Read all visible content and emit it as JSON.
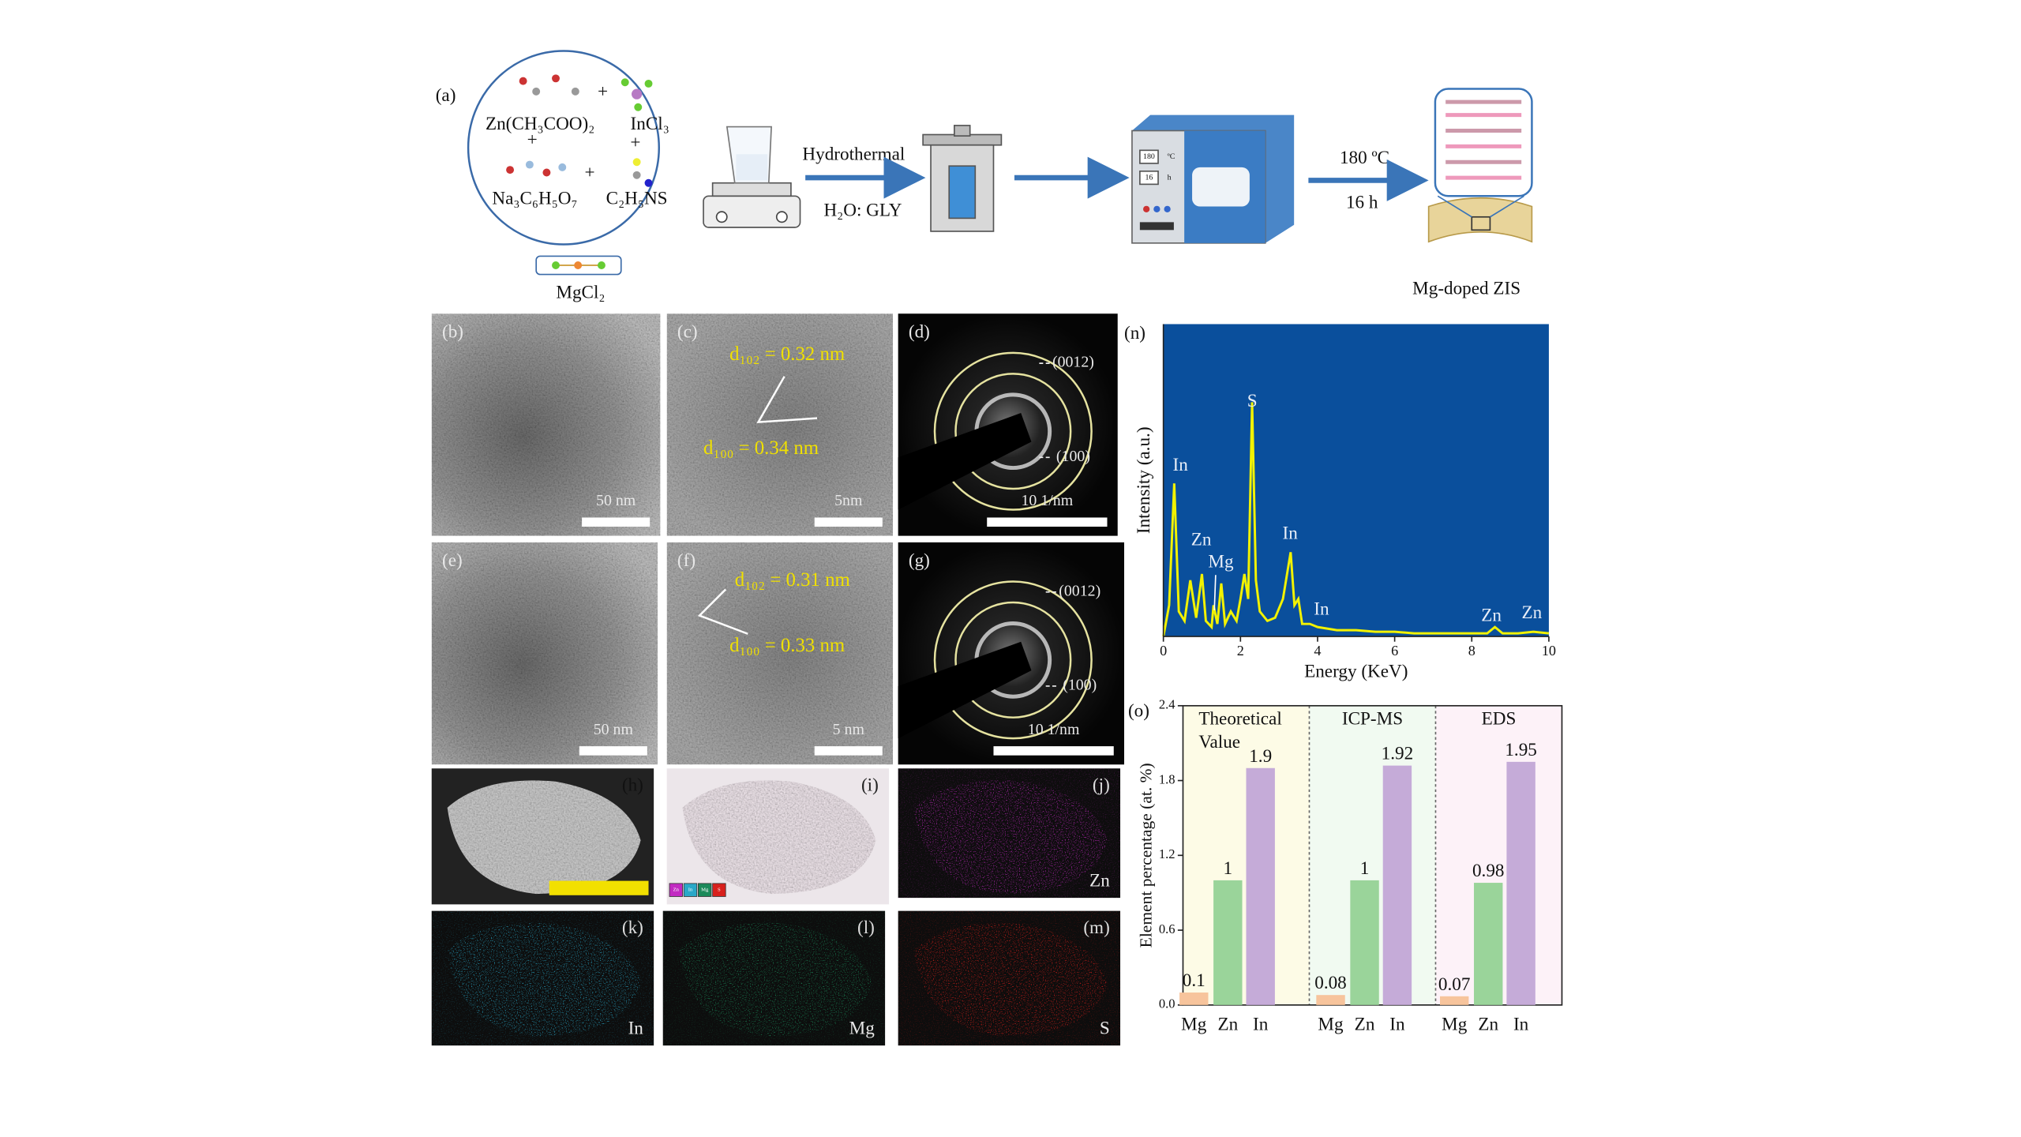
{
  "scheme": {
    "label": "(a)",
    "reactants": [
      "Zn(CH₃COO)₂",
      "InCl₃",
      "Na₃C₆H₅O₇",
      "C₂H₅NS"
    ],
    "plus": "+",
    "dopant": "MgCl₂",
    "step1": [
      "Hydrothermal",
      "H₂O: GLY"
    ],
    "oven_display": [
      "180",
      "ºC",
      "16",
      "h"
    ],
    "step2": [
      "180 ºC",
      "16 h"
    ],
    "product": "Mg-doped ZIS"
  },
  "micrographs": [
    {
      "label": "(b)",
      "scale": "50 nm"
    },
    {
      "label": "(c)",
      "scale": "5nm",
      "annotations": [
        "d₁₀₂ = 0.32 nm",
        "d₁₀₀ = 0.34 nm"
      ]
    },
    {
      "label": "(d)",
      "scale": "10 1/nm",
      "rings": [
        "(0012)",
        "(100)"
      ]
    },
    {
      "label": "(e)",
      "scale": "50 nm"
    },
    {
      "label": "(f)",
      "scale": "5 nm",
      "annotations": [
        "d₁₀₂ = 0.31 nm",
        "d₁₀₀ = 0.33 nm"
      ]
    },
    {
      "label": "(g)",
      "scale": "10 1/nm",
      "rings": [
        "(0012)",
        "(100)"
      ]
    }
  ],
  "maps": [
    {
      "label": "(h)"
    },
    {
      "label": "(i)",
      "legend": [
        "Zn",
        "In",
        "Mg",
        "S"
      ]
    },
    {
      "label": "(j)",
      "element": "Zn"
    },
    {
      "label": "(k)",
      "element": "In"
    },
    {
      "label": "(l)",
      "element": "Mg"
    },
    {
      "label": "(m)",
      "element": "S"
    }
  ],
  "chart_data": [
    {
      "type": "line",
      "label": "(n)",
      "xlabel": "Energy (KeV)",
      "ylabel": "Intensity (a.u.)",
      "xlim": [
        0,
        10
      ],
      "xticks": [
        0,
        2,
        4,
        6,
        8,
        10
      ],
      "ylim": [
        0,
        100
      ],
      "background": "#0a4f9c",
      "color": "#f2f200",
      "x": [
        0,
        0.15,
        0.28,
        0.4,
        0.55,
        0.7,
        0.85,
        1.0,
        1.1,
        1.25,
        1.3,
        1.4,
        1.5,
        1.6,
        1.75,
        1.9,
        2.0,
        2.1,
        2.2,
        2.3,
        2.4,
        2.5,
        2.7,
        2.9,
        3.1,
        3.3,
        3.4,
        3.5,
        3.6,
        3.8,
        4.0,
        4.5,
        5,
        5.5,
        6,
        6.5,
        7,
        7.5,
        8,
        8.4,
        8.6,
        8.8,
        9.2,
        9.6,
        10
      ],
      "values": [
        0,
        10,
        49,
        8,
        5,
        18,
        6,
        20,
        5,
        3,
        10,
        4,
        17,
        4,
        8,
        5,
        12,
        20,
        12,
        75,
        18,
        8,
        5,
        6,
        12,
        27,
        10,
        12,
        4,
        4,
        3,
        2,
        2,
        1.5,
        1.5,
        1,
        1,
        1,
        1,
        1,
        3,
        1,
        1,
        1.5,
        1
      ],
      "annotations": [
        "In",
        "Zn",
        "Mg",
        "S",
        "In",
        "In",
        "Zn",
        "Zn"
      ]
    },
    {
      "type": "bar",
      "label": "(o)",
      "ylabel": "Element percentage (at. %)",
      "ylim": [
        0,
        2.4
      ],
      "yticks": [
        {
          "value": 0,
          "label": "0.0"
        },
        0.6,
        1.2,
        1.8,
        2.4
      ],
      "categories": [
        [
          "Theoretical",
          "Value"
        ],
        [
          "ICP-MS"
        ],
        [
          "EDS"
        ]
      ],
      "panel_colors": [
        "#fdfbe6",
        "#f1faf1",
        "#fdf2f8"
      ],
      "series": [
        {
          "name": "Mg",
          "color": "#f7c49c",
          "values": [
            0.1,
            0.08,
            0.07
          ]
        },
        {
          "name": "Zn",
          "color": "#9ad49a",
          "values": [
            1,
            1,
            0.98
          ]
        },
        {
          "name": "In",
          "color": "#c5abd8",
          "values": [
            1.9,
            1.92,
            1.95
          ]
        }
      ]
    }
  ]
}
